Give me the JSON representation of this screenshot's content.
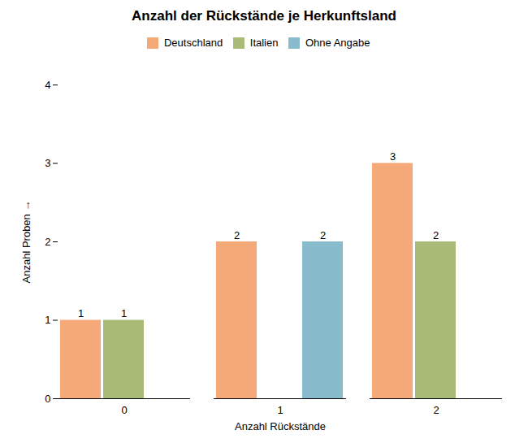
{
  "chart_data": {
    "type": "bar",
    "title": "Anzahl der Rückstände je Herkunftsland",
    "xlabel": "Anzahl Rückstände",
    "ylabel": "Anzahl Proben",
    "categories": [
      0,
      1,
      2
    ],
    "series": [
      {
        "name": "Deutschland",
        "color": "#F5A878",
        "values": [
          1,
          2,
          3
        ]
      },
      {
        "name": "Italien",
        "color": "#AABB77",
        "values": [
          1,
          0,
          2
        ]
      },
      {
        "name": "Ohne Angabe",
        "color": "#88BBCC",
        "values": [
          0,
          2,
          0
        ]
      }
    ],
    "ylim": [
      0,
      4
    ],
    "yticks": [
      0,
      1,
      2,
      3,
      4
    ],
    "grid": false,
    "legend": "upper center",
    "data_labels": true
  }
}
